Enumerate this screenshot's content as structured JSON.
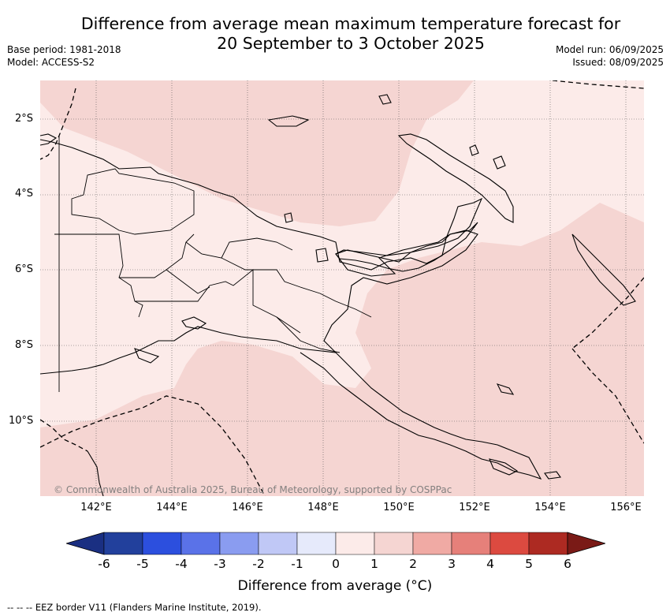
{
  "title_line1": "Difference from average mean maximum temperature forecast for",
  "title_line2": "20 September to 3 October 2025",
  "base_period": "Base period: 1981-2018",
  "model": "Model: ACCESS-S2",
  "model_run": "Model run: 06/09/2025",
  "issued": "Issued: 08/09/2025",
  "copyright": "© Commonwealth of Australia 2025, Bureau of Meteorology, supported by COSPPac",
  "lat_labels": [
    "2°S",
    "4°S",
    "6°S",
    "8°S",
    "10°S"
  ],
  "lon_labels": [
    "142°E",
    "144°E",
    "146°E",
    "148°E",
    "150°E",
    "152°E",
    "154°E",
    "156°E"
  ],
  "colorbar": {
    "ticks": [
      "-6",
      "-5",
      "-4",
      "-3",
      "-2",
      "-1",
      "0",
      "1",
      "2",
      "3",
      "4",
      "5",
      "6"
    ],
    "colors": [
      "#22409c",
      "#2c4fde",
      "#5a72e8",
      "#8a9cf0",
      "#c0c8f6",
      "#e6eafb",
      "#fcebe9",
      "#f5d5d2",
      "#f0aaa4",
      "#e6807a",
      "#dc4a40",
      "#ad2a22"
    ],
    "under_color": "#1a2f82",
    "over_color": "#7a1a16",
    "label": "Difference from average (°C)"
  },
  "map_fill_colors": {
    "light": "#fcebe9",
    "medium": "#f5d5d2"
  },
  "footnote": "-- -- -- EEZ border V11 (Flanders Marine Institute, 2019)."
}
